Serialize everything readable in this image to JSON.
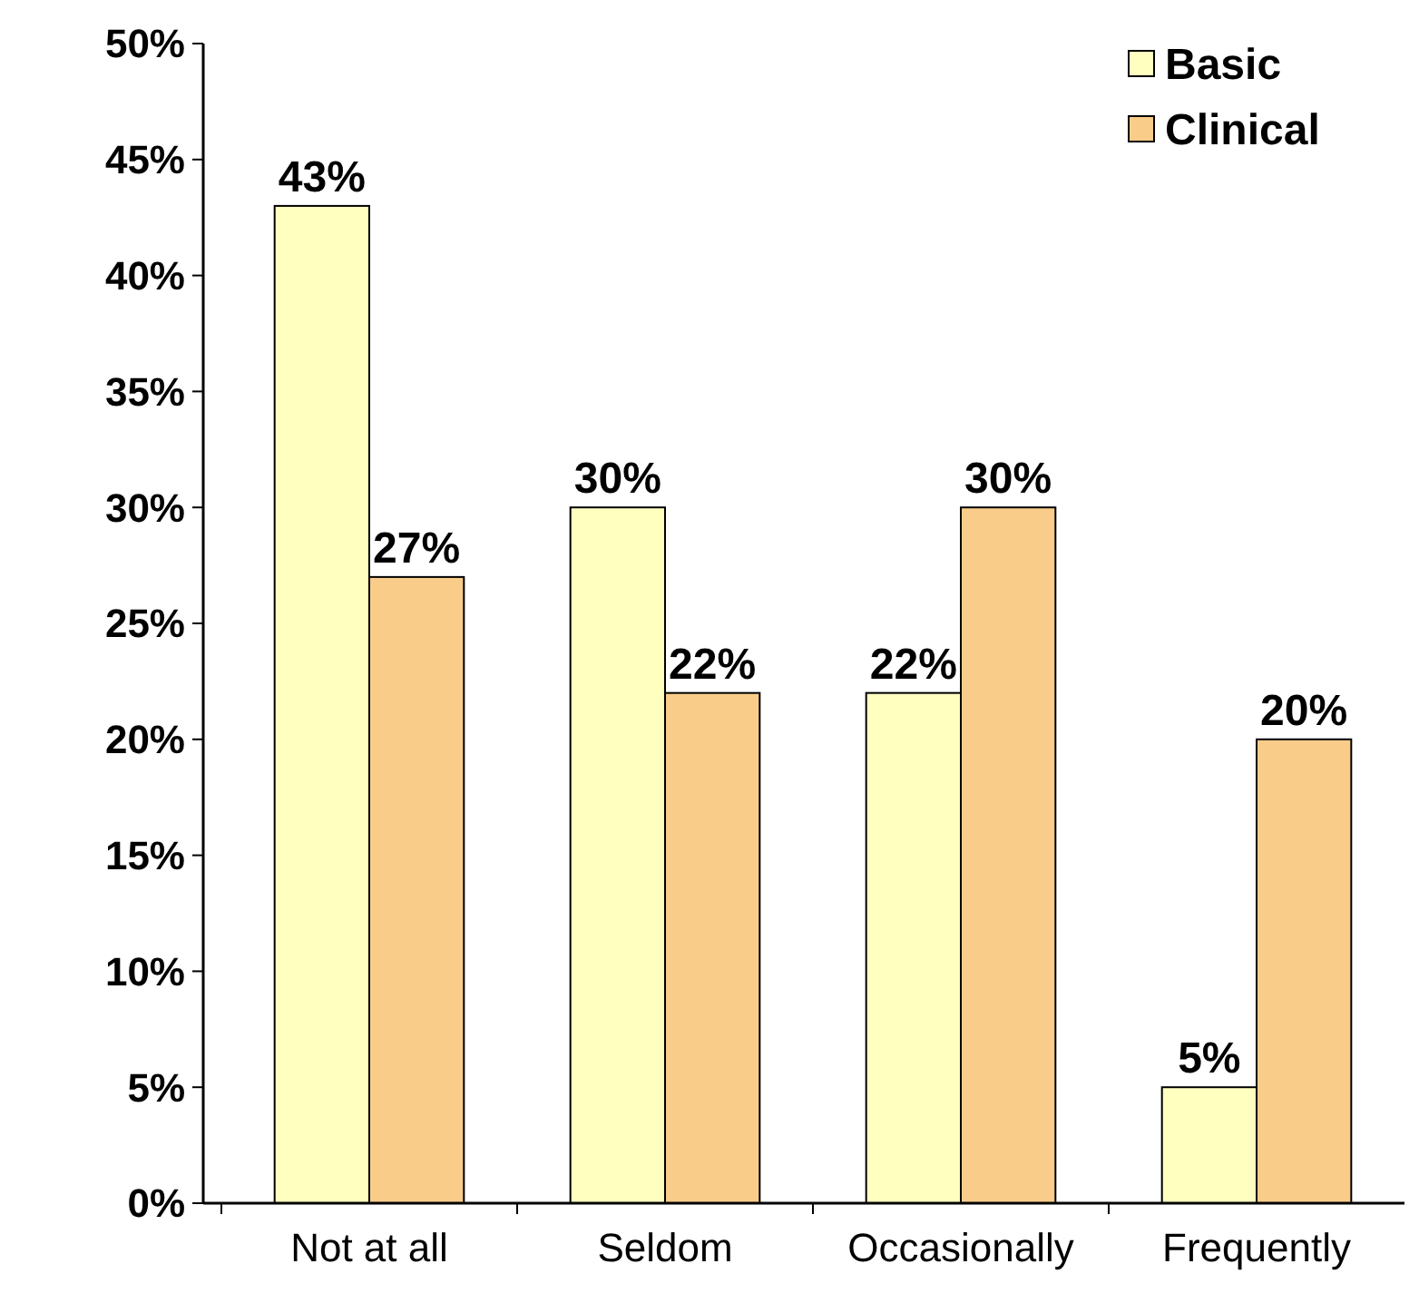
{
  "chart_data": {
    "type": "bar",
    "categories": [
      "Not at all",
      "Seldom",
      "Occasionally",
      "Frequently"
    ],
    "series": [
      {
        "name": "Basic",
        "color": "#ffffc0",
        "values": [
          43,
          30,
          22,
          5
        ],
        "value_labels": [
          "43%",
          "30%",
          "22%",
          "5%"
        ]
      },
      {
        "name": "Clinical",
        "color": "#f9cc8a",
        "values": [
          27,
          22,
          30,
          20
        ],
        "value_labels": [
          "27%",
          "22%",
          "30%",
          "20%"
        ]
      }
    ],
    "ylim": [
      0,
      50
    ],
    "yticks": [
      {
        "value": 0,
        "label": "0%"
      },
      {
        "value": 5,
        "label": "5%"
      },
      {
        "value": 10,
        "label": "10%"
      },
      {
        "value": 15,
        "label": "15%"
      },
      {
        "value": 20,
        "label": "20%"
      },
      {
        "value": 25,
        "label": "25%"
      },
      {
        "value": 30,
        "label": "30%"
      },
      {
        "value": 35,
        "label": "35%"
      },
      {
        "value": 40,
        "label": "40%"
      },
      {
        "value": 45,
        "label": "45%"
      },
      {
        "value": 50,
        "label": "50%"
      }
    ],
    "legend": "top right",
    "grid": false
  }
}
